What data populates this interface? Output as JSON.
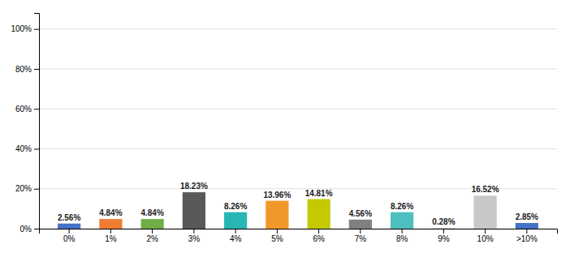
{
  "chart_data": {
    "type": "bar",
    "categories": [
      "0%",
      "1%",
      "2%",
      "3%",
      "4%",
      "5%",
      "6%",
      "7%",
      "8%",
      "9%",
      "10%",
      ">10%"
    ],
    "values": [
      2.56,
      4.84,
      4.84,
      18.23,
      8.26,
      13.96,
      14.81,
      4.56,
      8.26,
      0.28,
      16.52,
      2.85
    ],
    "value_labels": [
      "2.56%",
      "4.84%",
      "4.84%",
      "18.23%",
      "8.26%",
      "13.96%",
      "14.81%",
      "4.56%",
      "8.26%",
      "0.28%",
      "16.52%",
      "2.85%"
    ],
    "colors": [
      "#4472c4",
      "#ed7d31",
      "#70ad47",
      "#595959",
      "#2ab5b5",
      "#f0982a",
      "#c5c900",
      "#808080",
      "#4dbfbf",
      "#c0c0c0",
      "#c8c8c8",
      "#4472c4"
    ],
    "ylim": [
      0,
      108
    ],
    "yticks": [
      {
        "value": 0,
        "label": "0%"
      },
      {
        "value": 20,
        "label": "20%"
      },
      {
        "value": 40,
        "label": "40%"
      },
      {
        "value": 60,
        "label": "60%"
      },
      {
        "value": 80,
        "label": "80%"
      },
      {
        "value": 100,
        "label": "100%"
      }
    ],
    "grid": true,
    "data_labels": true
  }
}
